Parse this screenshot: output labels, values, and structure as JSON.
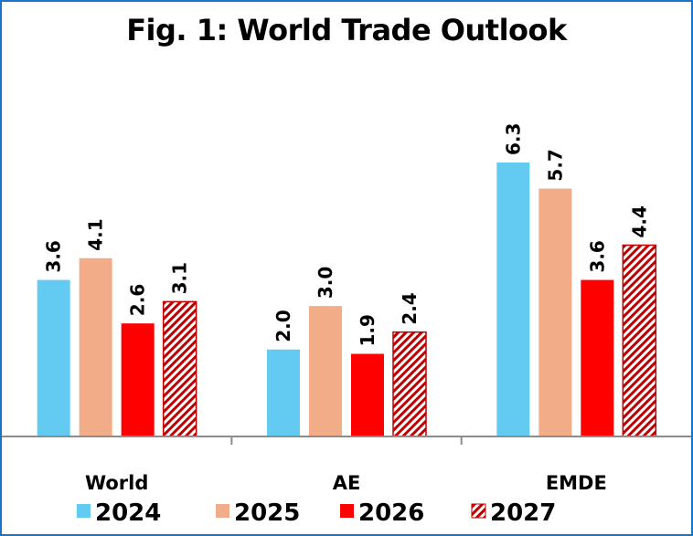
{
  "chart_data": {
    "type": "bar",
    "title": "Fig. 1: World Trade Outlook",
    "xlabel": "",
    "ylabel": "",
    "categories": [
      "World",
      "AE",
      "EMDE"
    ],
    "series": [
      {
        "name": "2024",
        "values": [
          3.6,
          2.0,
          6.3
        ],
        "color": "#63cbf2",
        "pattern": "solid"
      },
      {
        "name": "2025",
        "values": [
          4.1,
          3.0,
          5.7
        ],
        "color": "#f2ac87",
        "pattern": "solid"
      },
      {
        "name": "2026",
        "values": [
          2.6,
          1.9,
          3.6
        ],
        "color": "#ff0000",
        "pattern": "solid"
      },
      {
        "name": "2027",
        "values": [
          3.1,
          2.4,
          4.4
        ],
        "color": "#c00000",
        "pattern": "diagonal-hatch"
      }
    ],
    "ylim": [
      0,
      7
    ],
    "grid": false,
    "legend_position": "bottom",
    "data_labels": true
  }
}
